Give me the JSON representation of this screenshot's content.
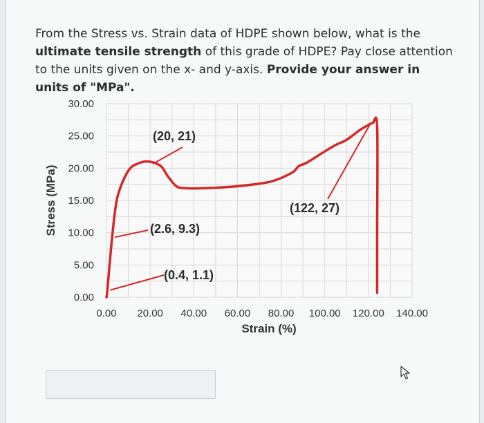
{
  "question": {
    "part1": "From the Stress vs. Strain data of HDPE shown below, what is the ",
    "bold1": "ultimate tensile strength",
    "part2": " of this grade of HDPE? Pay close attention to the units given on the x- and y-axis. ",
    "bold2": "Provide your answer in units of \"MPa\"."
  },
  "chart_data": {
    "type": "line",
    "xlabel": "Strain (%)",
    "ylabel": "Stress (MPa)",
    "xlim": [
      0,
      140
    ],
    "ylim": [
      0,
      30
    ],
    "x_ticks": [
      "0.00",
      "20.00",
      "40.00",
      "60.00",
      "80.00",
      "100.00",
      "120.00",
      "140.00"
    ],
    "y_ticks": [
      "0.00",
      "5.00",
      "10.00",
      "15.00",
      "20.00",
      "25.00",
      "30.00"
    ],
    "grid": true,
    "line_color": "#d42828",
    "series": [
      {
        "x": [
          0,
          0.4,
          2.6,
          5,
          10,
          15,
          20,
          25,
          28,
          32,
          36,
          45,
          60,
          75,
          85,
          88,
          92,
          100,
          105,
          110,
          116,
          120,
          122,
          124,
          124,
          124
        ],
        "y": [
          0,
          1.1,
          9.3,
          15.5,
          19.6,
          20.8,
          21,
          20.3,
          18.8,
          17.2,
          16.9,
          16.9,
          17.2,
          17.9,
          19.3,
          20.3,
          20.9,
          22.6,
          23.6,
          24.4,
          25.9,
          26.7,
          27,
          26.5,
          10,
          0.7
        ]
      }
    ],
    "annotations": [
      {
        "label": "(20, 21)",
        "x": 20,
        "y": 21
      },
      {
        "label": "(2.6, 9.3)",
        "x": 2.6,
        "y": 9.3
      },
      {
        "label": "(0.4, 1.1)",
        "x": 0.4,
        "y": 1.1
      },
      {
        "label": "(122, 27)",
        "x": 122,
        "y": 27
      }
    ]
  },
  "answer": {
    "value": ""
  }
}
